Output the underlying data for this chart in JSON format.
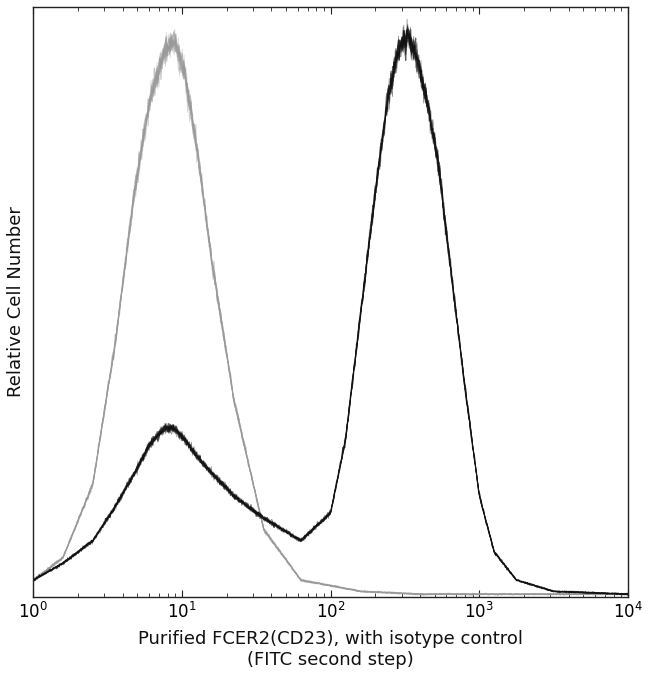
{
  "title": "",
  "xlabel_line1": "Purified FCER2(CD23), with isotype control",
  "xlabel_line2": "(FITC second step)",
  "ylabel": "Relative Cell Number",
  "xlim_log": [
    1,
    10000
  ],
  "ylim": [
    0,
    1.05
  ],
  "background_color": "#ffffff",
  "isotype_color": "#999999",
  "antibody_color": "#111111",
  "font_size_axis_label": 13,
  "font_size_tick": 12,
  "iso_log_x": [
    0.0,
    0.2,
    0.4,
    0.55,
    0.68,
    0.78,
    0.88,
    0.95,
    1.02,
    1.1,
    1.2,
    1.35,
    1.55,
    1.8,
    2.2,
    2.6,
    3.0,
    3.5,
    4.0
  ],
  "iso_y": [
    0.03,
    0.07,
    0.2,
    0.45,
    0.72,
    0.88,
    0.97,
    0.99,
    0.93,
    0.8,
    0.6,
    0.35,
    0.12,
    0.03,
    0.01,
    0.005,
    0.005,
    0.005,
    0.005
  ],
  "ab_log_x": [
    0.0,
    0.2,
    0.4,
    0.55,
    0.68,
    0.78,
    0.88,
    0.95,
    1.02,
    1.1,
    1.2,
    1.35,
    1.55,
    1.8,
    2.0,
    2.1,
    2.2,
    2.3,
    2.38,
    2.45,
    2.52,
    2.58,
    2.65,
    2.72,
    2.8,
    2.9,
    3.0,
    3.1,
    3.25,
    3.5,
    4.0
  ],
  "ab_y": [
    0.03,
    0.06,
    0.1,
    0.16,
    0.22,
    0.27,
    0.3,
    0.3,
    0.28,
    0.25,
    0.22,
    0.18,
    0.14,
    0.1,
    0.15,
    0.28,
    0.5,
    0.72,
    0.88,
    0.97,
    1.0,
    0.96,
    0.88,
    0.78,
    0.6,
    0.38,
    0.18,
    0.08,
    0.03,
    0.01,
    0.005
  ]
}
